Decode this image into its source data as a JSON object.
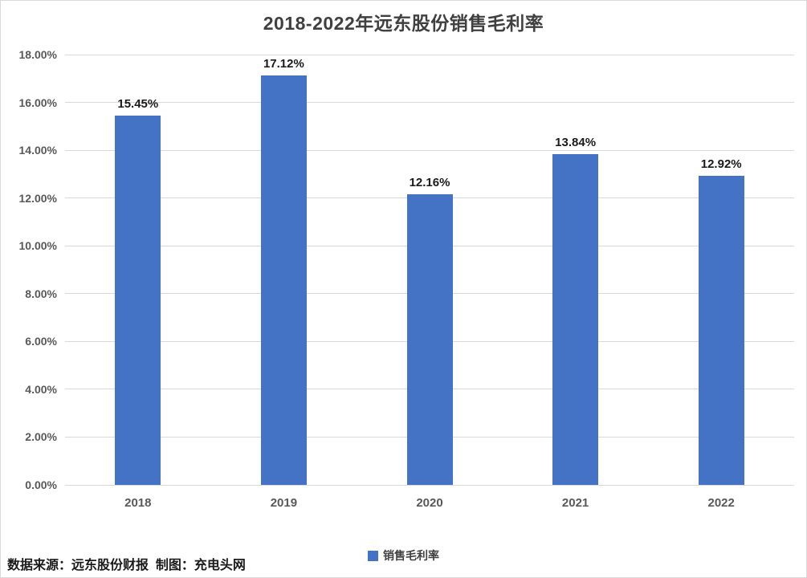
{
  "chart_data": {
    "type": "bar",
    "title": "2018-2022年远东股份销售毛利率",
    "categories": [
      "2018",
      "2019",
      "2020",
      "2021",
      "2022"
    ],
    "values": [
      15.45,
      17.12,
      12.16,
      13.84,
      12.92
    ],
    "data_labels": [
      "15.45%",
      "17.12%",
      "12.16%",
      "13.84%",
      "12.92%"
    ],
    "series_name": "销售毛利率",
    "xlabel": "",
    "ylabel": "",
    "ylim": [
      0,
      18
    ],
    "y_tick_step": 2,
    "y_ticks": [
      "0.00%",
      "2.00%",
      "4.00%",
      "6.00%",
      "8.00%",
      "10.00%",
      "12.00%",
      "14.00%",
      "16.00%",
      "18.00%"
    ],
    "grid": true,
    "legend_position": "bottom",
    "bar_color": "#4472C4"
  },
  "legend": {
    "items": [
      {
        "label": "销售毛利率",
        "color": "#4472C4",
        "marker": "square"
      }
    ]
  },
  "footer": {
    "source_note": "数据来源：远东股份财报  制图：充电头网"
  },
  "colors": {
    "bar": "#4472C4",
    "gridline": "#D9D9D9",
    "axis_label": "#595959",
    "title": "#404040",
    "data_label": "#1A1A1A",
    "border": "#D9D9D9",
    "background": "#FFFFFF"
  }
}
